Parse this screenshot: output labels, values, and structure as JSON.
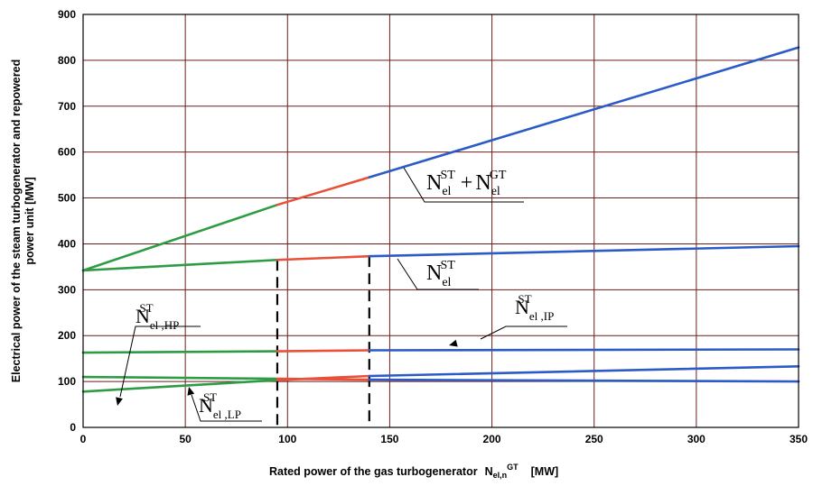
{
  "chart_data": {
    "type": "line",
    "xlabel": {
      "main": "Rated power of the gas turbogenerator",
      "symbol": "N",
      "sub": "el,n",
      "sup": "GT",
      "unit": "[MW]"
    },
    "ylabel": {
      "line1": "Electrical power of the steam turbogenerator and repowered",
      "line2": "power unit  [MW]"
    },
    "xlim": [
      0,
      350
    ],
    "ylim": [
      0,
      900
    ],
    "xticks": [
      "0",
      "50",
      "100",
      "150",
      "200",
      "250",
      "300",
      "350"
    ],
    "yticks": [
      "0",
      "100",
      "200",
      "300",
      "400",
      "500",
      "600",
      "700",
      "800",
      "900"
    ],
    "grid": true,
    "vlines": [
      95,
      140
    ],
    "colors": {
      "phase1": "#2e9c45",
      "phase2": "#e8503a",
      "phase3": "#2a5bc7",
      "grid": "#6b1e1e",
      "frame": "#000000"
    },
    "series": [
      {
        "id": "total",
        "points": [
          [
            0,
            342
          ],
          [
            95,
            485
          ],
          [
            140,
            545
          ],
          [
            350,
            828
          ]
        ]
      },
      {
        "id": "st",
        "points": [
          [
            0,
            342
          ],
          [
            95,
            365
          ],
          [
            140,
            373
          ],
          [
            350,
            395
          ]
        ]
      },
      {
        "id": "hp",
        "points": [
          [
            0,
            163
          ],
          [
            95,
            166
          ],
          [
            140,
            168
          ],
          [
            350,
            170
          ]
        ]
      },
      {
        "id": "lp",
        "points": [
          [
            0,
            78
          ],
          [
            95,
            103
          ],
          [
            140,
            112
          ],
          [
            350,
            133
          ]
        ]
      },
      {
        "id": "ip",
        "points": [
          [
            0,
            110
          ],
          [
            95,
            106
          ],
          [
            140,
            104
          ],
          [
            350,
            100
          ]
        ]
      }
    ],
    "annotations": {
      "total": {
        "N": "N",
        "sub1": "el",
        "sup1": "ST",
        "plus": "+",
        "N2": "N",
        "sub2": "el",
        "sup2": "GT"
      },
      "st": {
        "N": "N",
        "sub": "el",
        "sup": "ST"
      },
      "hp": {
        "N": "N",
        "sub": "el ,HP",
        "sup": "ST"
      },
      "ip": {
        "N": "N",
        "sub": "el ,IP",
        "sup": "ST"
      },
      "lp": {
        "N": "N",
        "sub": "el ,LP",
        "sup": "ST"
      }
    }
  }
}
